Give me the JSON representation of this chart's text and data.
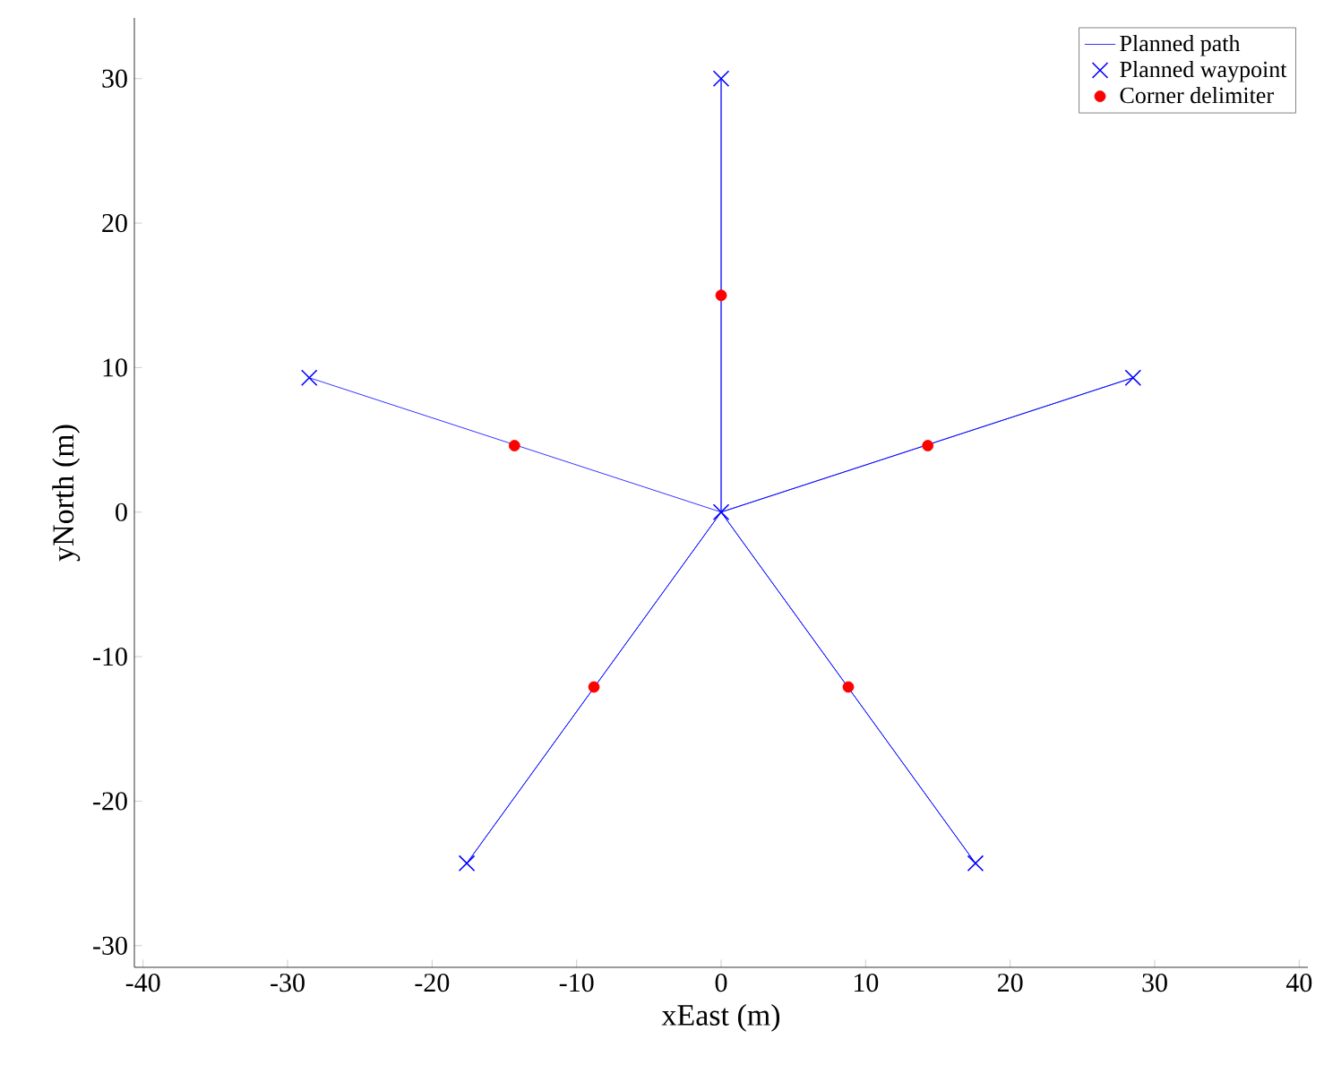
{
  "chart_data": {
    "type": "line",
    "xlabel": "xEast (m)",
    "ylabel": "yNorth (m)",
    "xlim": [
      -40.6,
      40.6
    ],
    "ylim": [
      -31.5,
      34.2
    ],
    "xticks": [
      -40,
      -30,
      -20,
      -10,
      0,
      10,
      20,
      30,
      40
    ],
    "yticks": [
      -30,
      -20,
      -10,
      0,
      10,
      20,
      30
    ],
    "grid": false,
    "legend": "top right",
    "series": [
      {
        "name": "Planned path",
        "color": "#0000ff",
        "marker": "none",
        "x": [
          0,
          0,
          0,
          28.5,
          0,
          17.6,
          0,
          -17.6,
          0,
          -28.5
        ],
        "values": [
          0,
          30,
          0,
          9.3,
          0,
          -24.3,
          0,
          -24.3,
          0,
          9.3
        ]
      },
      {
        "name": "Planned waypoint",
        "type": "scatter",
        "color": "#0000ff",
        "marker": "cross",
        "x": [
          0,
          0,
          28.5,
          17.6,
          -17.6,
          -28.5
        ],
        "values": [
          0,
          30,
          9.3,
          -24.3,
          -24.3,
          9.3
        ]
      },
      {
        "name": "Corner delimiter",
        "type": "scatter",
        "color": "#ff0000",
        "marker": "circle",
        "x": [
          0,
          14.3,
          8.8,
          -8.8,
          -14.3
        ],
        "values": [
          15,
          4.6,
          -12.1,
          -12.1,
          4.6
        ]
      }
    ]
  }
}
